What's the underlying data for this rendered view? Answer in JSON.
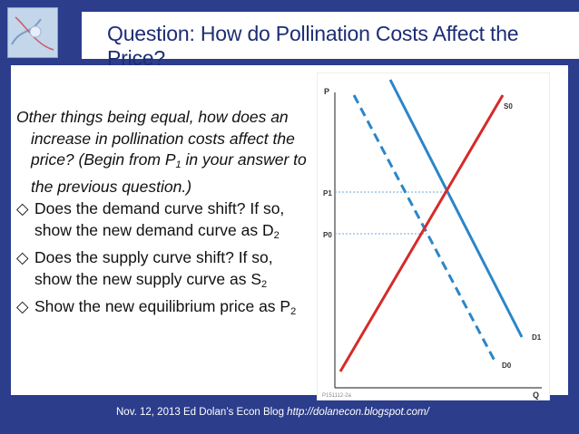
{
  "slide": {
    "title": "Question: How do Pollination Costs Affect the Price?",
    "intro_prefix": "Other things being equal, how does an increase in pollination costs affect the price? (Begin from P",
    "intro_sub": "1",
    "intro_suffix": " in your answer to the previous question.)",
    "bullets": [
      {
        "text": "Does the demand curve shift? If so, show the new demand curve as D",
        "sub": "2"
      },
      {
        "text": "Does the supply curve shift? If so, show the new supply curve as S",
        "sub": "2"
      },
      {
        "text": "Show the new equilibrium price as P",
        "sub": "2"
      }
    ],
    "bullet_glyph": "◇",
    "footer_text": "Nov. 12, 2013 Ed Dolan’s Econ Blog ",
    "footer_url": "http://dolanecon.blogspot.com/"
  },
  "diagram": {
    "axis_y_label": "P",
    "axis_x_label": "Q",
    "price_labels": [
      "P1",
      "P0"
    ],
    "curve_labels": {
      "supply": "S0",
      "demand_new": "D1",
      "demand_old": "D0"
    },
    "figure_id": "P151112-2a",
    "colors": {
      "supply": "#d62a2a",
      "demand": "#2a86c8",
      "guide": "#6fa4d6",
      "axis": "#444444"
    }
  }
}
